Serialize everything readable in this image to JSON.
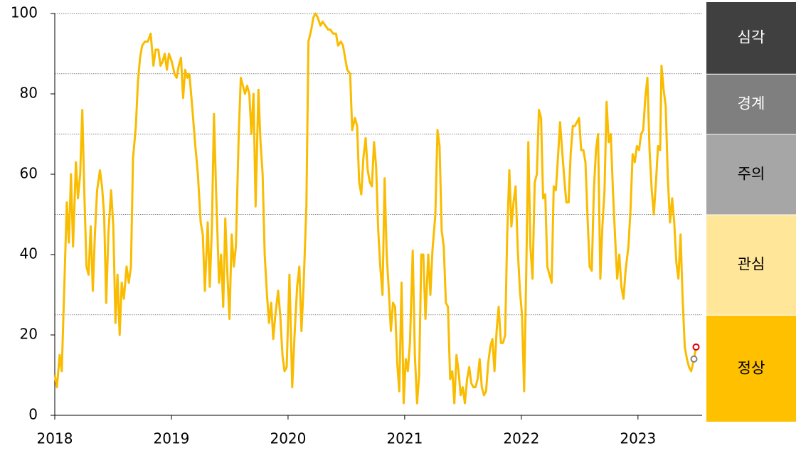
{
  "chart_data": {
    "type": "line",
    "xlim": [
      2018,
      2023.55
    ],
    "xticks": [
      2018,
      2019,
      2020,
      2021,
      2022,
      2023
    ],
    "ylim": [
      0,
      100
    ],
    "yticks": [
      0,
      20,
      40,
      60,
      80,
      100
    ],
    "zones": [
      {
        "name": "심각",
        "from": 85,
        "to": 100,
        "color": "#404040",
        "text_color": "#ffffff"
      },
      {
        "name": "경계",
        "from": 70,
        "to": 85,
        "color": "#7f7f7f",
        "text_color": "#ffffff"
      },
      {
        "name": "주의",
        "from": 50,
        "to": 70,
        "color": "#a6a6a6",
        "text_color": "#000000"
      },
      {
        "name": "관심",
        "from": 25,
        "to": 50,
        "color": "#ffe699",
        "text_color": "#000000"
      },
      {
        "name": "정상",
        "from": 0,
        "to": 25,
        "color": "#ffc000",
        "text_color": "#000000"
      }
    ],
    "x": [
      2018.0,
      2018.018,
      2018.042,
      2018.06,
      2018.085,
      2018.103,
      2018.121,
      2018.139,
      2018.157,
      2018.181,
      2018.199,
      2018.218,
      2018.236,
      2018.254,
      2018.272,
      2018.29,
      2018.308,
      2018.326,
      2018.344,
      2018.363,
      2018.387,
      2018.405,
      2018.423,
      2018.441,
      2018.459,
      2018.483,
      2018.502,
      2018.52,
      2018.538,
      2018.556,
      2018.574,
      2018.592,
      2018.616,
      2018.634,
      2018.653,
      2018.671,
      2018.695,
      2018.713,
      2018.731,
      2018.749,
      2018.773,
      2018.798,
      2018.822,
      2018.846,
      2018.864,
      2018.888,
      2018.906,
      2018.924,
      2018.943,
      2018.961,
      2018.979,
      2019.003,
      2019.027,
      2019.045,
      2019.063,
      2019.082,
      2019.1,
      2019.118,
      2019.136,
      2019.154,
      2019.178,
      2019.202,
      2019.227,
      2019.251,
      2019.269,
      2019.287,
      2019.311,
      2019.329,
      2019.347,
      2019.365,
      2019.384,
      2019.408,
      2019.426,
      2019.444,
      2019.462,
      2019.48,
      2019.498,
      2019.517,
      2019.535,
      2019.553,
      2019.577,
      2019.595,
      2019.613,
      2019.631,
      2019.649,
      2019.668,
      2019.686,
      2019.704,
      2019.722,
      2019.746,
      2019.764,
      2019.782,
      2019.8,
      2019.819,
      2019.837,
      2019.855,
      2019.873,
      2019.891,
      2019.915,
      2019.933,
      2019.952,
      2019.97,
      2019.988,
      2020.012,
      2020.036,
      2020.054,
      2020.078,
      2020.097,
      2020.115,
      2020.133,
      2020.157,
      2020.175,
      2020.199,
      2020.217,
      2020.236,
      2020.254,
      2020.278,
      2020.296,
      2020.32,
      2020.344,
      2020.362,
      2020.387,
      2020.411,
      2020.429,
      2020.453,
      2020.471,
      2020.489,
      2020.507,
      2020.532,
      2020.55,
      2020.574,
      2020.592,
      2020.61,
      2020.628,
      2020.646,
      2020.665,
      2020.683,
      2020.701,
      2020.719,
      2020.737,
      2020.755,
      2020.773,
      2020.791,
      2020.81,
      2020.828,
      2020.846,
      2020.864,
      2020.882,
      2020.9,
      2020.918,
      2020.936,
      2020.954,
      2020.973,
      2020.991,
      2021.009,
      2021.027,
      2021.045,
      2021.069,
      2021.087,
      2021.106,
      2021.124,
      2021.142,
      2021.16,
      2021.178,
      2021.202,
      2021.22,
      2021.238,
      2021.263,
      2021.281,
      2021.299,
      2021.317,
      2021.335,
      2021.353,
      2021.371,
      2021.39,
      2021.408,
      2021.426,
      2021.444,
      2021.462,
      2021.48,
      2021.498,
      2021.516,
      2021.535,
      2021.553,
      2021.571,
      2021.589,
      2021.607,
      2021.625,
      2021.643,
      2021.661,
      2021.68,
      2021.698,
      2021.716,
      2021.734,
      2021.752,
      2021.77,
      2021.788,
      2021.806,
      2021.825,
      2021.843,
      2021.861,
      2021.879,
      2021.897,
      2021.915,
      2021.933,
      2021.951,
      2021.97,
      2021.988,
      2022.006,
      2022.024,
      2022.042,
      2022.06,
      2022.078,
      2022.096,
      2022.115,
      2022.133,
      2022.151,
      2022.169,
      2022.187,
      2022.205,
      2022.223,
      2022.241,
      2022.26,
      2022.278,
      2022.296,
      2022.314,
      2022.332,
      2022.35,
      2022.368,
      2022.386,
      2022.405,
      2022.423,
      2022.441,
      2022.459,
      2022.477,
      2022.495,
      2022.513,
      2022.532,
      2022.55,
      2022.568,
      2022.586,
      2022.604,
      2022.622,
      2022.64,
      2022.658,
      2022.677,
      2022.695,
      2022.713,
      2022.731,
      2022.749,
      2022.767,
      2022.785,
      2022.803,
      2022.822,
      2022.84,
      2022.858,
      2022.876,
      2022.894,
      2022.918,
      2022.936,
      2022.954,
      2022.973,
      2022.991,
      2023.009,
      2023.027,
      2023.045,
      2023.063,
      2023.081,
      2023.099,
      2023.118,
      2023.136,
      2023.154,
      2023.172,
      2023.19,
      2023.202,
      2023.22,
      2023.238,
      2023.256,
      2023.275,
      2023.293,
      2023.311,
      2023.329,
      2023.347,
      2023.365,
      2023.383,
      2023.401,
      2023.42,
      2023.438,
      2023.456,
      2023.48,
      2023.498
    ],
    "series": [
      {
        "color": "#f9bc00",
        "last_point_colors": [
          "#808080",
          "#e00000"
        ],
        "values": [
          10,
          7,
          15,
          11,
          35,
          53,
          43,
          60,
          42,
          63,
          54,
          60,
          76,
          55,
          37,
          35,
          47,
          31,
          45,
          56,
          61,
          57,
          50,
          28,
          45,
          56,
          47,
          23,
          35,
          20,
          33,
          29,
          37,
          33,
          37,
          64,
          72,
          83,
          89,
          92,
          93,
          93,
          95,
          87,
          91,
          91,
          87,
          88,
          90,
          86,
          90,
          88,
          85,
          84,
          87,
          89,
          79,
          86,
          84,
          85,
          77,
          68,
          60,
          48,
          45,
          31,
          48,
          32,
          47,
          75,
          55,
          33,
          40,
          27,
          49,
          35,
          24,
          45,
          37,
          42,
          70,
          84,
          82,
          80,
          82,
          80,
          70,
          80,
          52,
          81,
          68,
          60,
          40,
          30,
          23,
          28,
          19,
          25,
          31,
          25,
          15,
          11,
          12,
          35,
          7,
          19,
          32,
          37,
          21,
          32,
          52,
          93,
          96,
          99,
          100,
          99,
          97,
          98,
          97,
          96,
          96,
          95,
          95,
          92,
          93,
          92,
          89,
          86,
          85,
          71,
          74,
          72,
          58,
          55,
          64,
          69,
          61,
          58,
          57,
          68,
          62,
          46,
          37,
          30,
          59,
          40,
          31,
          21,
          28,
          27,
          13,
          6,
          33,
          3,
          14,
          11,
          18,
          41,
          15,
          3,
          10,
          40,
          40,
          24,
          40,
          30,
          41,
          50,
          71,
          67,
          46,
          42,
          28,
          27,
          9,
          11,
          3,
          15,
          11,
          5,
          7,
          3,
          9,
          12,
          8,
          7,
          7,
          9,
          14,
          7,
          5,
          6,
          13,
          17,
          19,
          11,
          21,
          27,
          18,
          18,
          20,
          45,
          61,
          47,
          53,
          57,
          41,
          31,
          25,
          6,
          35,
          68,
          42,
          34,
          58,
          60,
          76,
          74,
          54,
          55,
          37,
          35,
          33,
          57,
          56,
          64,
          73,
          66,
          59,
          53,
          53,
          65,
          72,
          72,
          73,
          74,
          66,
          66,
          63,
          49,
          37,
          36,
          56,
          66,
          70,
          34,
          47,
          56,
          78,
          68,
          70,
          56,
          45,
          34,
          40,
          32,
          29,
          36,
          42,
          51,
          65,
          63,
          67,
          66,
          70,
          71,
          79,
          84,
          66,
          56,
          50,
          58,
          67,
          66,
          87,
          81,
          77,
          59,
          48,
          54,
          48,
          38,
          34,
          45,
          29,
          17,
          14,
          12,
          11,
          14,
          17
        ]
      }
    ]
  }
}
